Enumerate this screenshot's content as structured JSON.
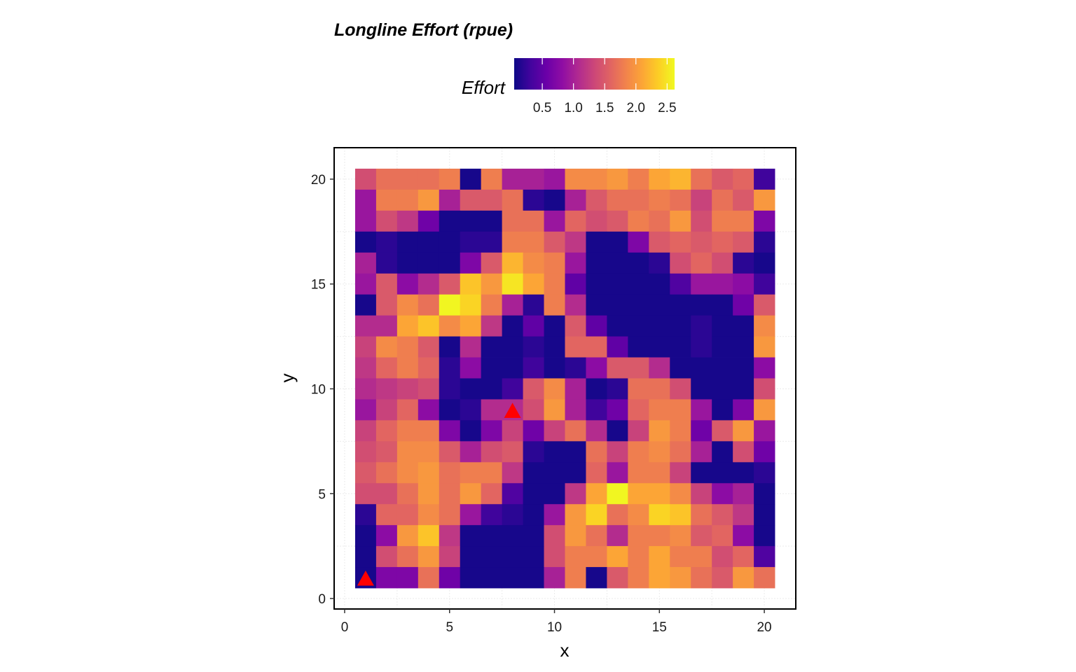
{
  "chart_data": {
    "type": "heatmap",
    "title": "Longline Effort (rpue)",
    "xlabel": "x",
    "ylabel": "y",
    "xlim": [
      -0.5,
      21.5
    ],
    "ylim": [
      -0.5,
      21.5
    ],
    "x_ticks": [
      0,
      5,
      10,
      15,
      20
    ],
    "y_ticks": [
      0,
      5,
      10,
      15,
      20
    ],
    "x_tick_labels": [
      "0",
      "5",
      "10",
      "15",
      "20"
    ],
    "y_tick_labels": [
      "0",
      "5",
      "10",
      "15",
      "20"
    ],
    "x": [
      1,
      2,
      3,
      4,
      5,
      6,
      7,
      8,
      9,
      10,
      11,
      12,
      13,
      14,
      15,
      16,
      17,
      18,
      19,
      20
    ],
    "y": [
      1,
      2,
      3,
      4,
      5,
      6,
      7,
      8,
      9,
      10,
      11,
      12,
      13,
      14,
      15,
      16,
      17,
      18,
      19,
      20
    ],
    "z_rows_top_to_bottom": [
      [
        1.4,
        1.7,
        1.7,
        1.7,
        1.8,
        0.1,
        1.8,
        1.0,
        1.0,
        0.9,
        1.9,
        1.9,
        2.0,
        1.8,
        2.1,
        2.2,
        1.7,
        1.5,
        1.6,
        0.3
      ],
      [
        0.9,
        1.8,
        1.8,
        2.0,
        1.0,
        1.5,
        1.5,
        1.7,
        0.2,
        0.1,
        1.0,
        1.5,
        1.7,
        1.7,
        1.8,
        1.7,
        1.3,
        1.7,
        1.5,
        2.0
      ],
      [
        0.9,
        1.4,
        1.2,
        0.6,
        0.1,
        0.1,
        0.1,
        1.7,
        1.7,
        0.9,
        1.6,
        1.4,
        1.5,
        1.8,
        1.7,
        2.0,
        1.4,
        1.8,
        1.8,
        0.7
      ],
      [
        0.1,
        0.2,
        0.1,
        0.1,
        0.1,
        0.2,
        0.2,
        1.8,
        1.8,
        1.5,
        1.2,
        0.1,
        0.1,
        0.7,
        1.5,
        1.6,
        1.5,
        1.6,
        1.5,
        0.2
      ],
      [
        1.0,
        0.2,
        0.1,
        0.1,
        0.1,
        0.7,
        1.5,
        2.2,
        1.9,
        1.8,
        0.9,
        0.1,
        0.1,
        0.1,
        0.2,
        1.4,
        1.6,
        1.4,
        0.2,
        0.1
      ],
      [
        0.9,
        1.5,
        0.8,
        1.1,
        1.5,
        2.3,
        2.0,
        2.5,
        2.1,
        1.8,
        0.5,
        0.1,
        0.1,
        0.1,
        0.1,
        0.4,
        0.9,
        0.9,
        0.8,
        0.3
      ],
      [
        0.1,
        1.5,
        1.9,
        1.7,
        2.6,
        2.4,
        1.8,
        1.0,
        0.2,
        1.8,
        1.1,
        0.1,
        0.1,
        0.1,
        0.1,
        0.1,
        0.1,
        0.1,
        0.6,
        1.5
      ],
      [
        1.1,
        1.1,
        2.1,
        2.3,
        1.9,
        2.1,
        1.2,
        0.1,
        0.5,
        0.1,
        1.5,
        0.5,
        0.1,
        0.1,
        0.1,
        0.1,
        0.2,
        0.1,
        0.1,
        1.9
      ],
      [
        1.3,
        1.9,
        1.8,
        1.5,
        0.1,
        1.1,
        0.1,
        0.1,
        0.2,
        0.1,
        1.6,
        1.6,
        0.5,
        0.1,
        0.1,
        0.1,
        0.2,
        0.1,
        0.1,
        2.0
      ],
      [
        1.2,
        1.6,
        1.8,
        1.6,
        0.2,
        0.8,
        0.1,
        0.1,
        0.3,
        0.1,
        0.2,
        0.8,
        1.5,
        1.5,
        1.1,
        0.1,
        0.1,
        0.1,
        0.1,
        0.8
      ],
      [
        1.1,
        1.2,
        1.3,
        1.4,
        0.2,
        0.1,
        0.1,
        0.3,
        1.5,
        1.9,
        1.0,
        0.1,
        0.2,
        1.7,
        1.7,
        1.4,
        0.1,
        0.1,
        0.1,
        1.4
      ],
      [
        0.9,
        1.3,
        1.6,
        0.8,
        0.1,
        0.2,
        1.1,
        1.1,
        1.4,
        2.0,
        1.0,
        0.3,
        0.6,
        1.6,
        1.8,
        1.8,
        0.9,
        0.1,
        0.7,
        2.0
      ],
      [
        1.3,
        1.6,
        1.8,
        1.8,
        0.7,
        0.1,
        0.7,
        1.3,
        0.6,
        1.3,
        1.7,
        1.1,
        0.1,
        1.3,
        2.0,
        1.8,
        0.6,
        1.5,
        2.0,
        0.9
      ],
      [
        1.4,
        1.5,
        1.9,
        1.9,
        1.5,
        1.0,
        1.4,
        1.5,
        0.2,
        0.1,
        0.1,
        1.7,
        1.3,
        1.8,
        1.9,
        1.7,
        1.0,
        0.1,
        1.4,
        0.6
      ],
      [
        1.5,
        1.7,
        1.9,
        2.0,
        1.7,
        1.8,
        1.8,
        1.2,
        0.1,
        0.1,
        0.1,
        1.6,
        0.9,
        1.8,
        1.8,
        1.3,
        0.1,
        0.1,
        0.1,
        0.2
      ],
      [
        1.4,
        1.4,
        1.7,
        2.0,
        1.7,
        2.0,
        1.6,
        0.4,
        0.1,
        0.1,
        1.2,
        2.1,
        2.6,
        2.1,
        2.1,
        1.9,
        1.3,
        0.8,
        1.0,
        0.1
      ],
      [
        0.2,
        1.6,
        1.6,
        1.9,
        1.7,
        0.9,
        0.3,
        0.2,
        0.1,
        0.9,
        2.0,
        2.4,
        1.7,
        1.9,
        2.4,
        2.3,
        1.7,
        1.5,
        1.2,
        0.1
      ],
      [
        0.1,
        0.8,
        2.0,
        2.3,
        1.2,
        0.1,
        0.1,
        0.1,
        0.1,
        1.4,
        2.0,
        1.7,
        1.1,
        1.8,
        1.8,
        1.9,
        1.5,
        1.6,
        0.8,
        0.1
      ],
      [
        0.1,
        1.4,
        1.7,
        2.0,
        1.3,
        0.1,
        0.1,
        0.1,
        0.1,
        1.4,
        1.8,
        1.8,
        2.1,
        1.8,
        2.1,
        1.8,
        1.8,
        1.4,
        1.6,
        0.4
      ],
      [
        0.1,
        0.7,
        0.7,
        1.7,
        0.6,
        0.1,
        0.1,
        0.1,
        0.1,
        1.0,
        1.8,
        0.1,
        1.5,
        1.8,
        2.1,
        2.0,
        1.7,
        1.5,
        2.0,
        1.7
      ]
    ],
    "colorbar": {
      "title": "Effort",
      "min": 0.05,
      "max": 2.62,
      "ticks": [
        0.5,
        1.0,
        1.5,
        2.0,
        2.5
      ],
      "tick_labels": [
        "0.5",
        "1.0",
        "1.5",
        "2.0",
        "2.5"
      ],
      "palette": "plasma",
      "position": "top"
    },
    "markers": {
      "shape": "triangle",
      "color": "#ff0000",
      "points": [
        {
          "x": 1,
          "y": 1
        },
        {
          "x": 8,
          "y": 9
        }
      ]
    },
    "grid": true
  },
  "colors": {
    "palette_stops": [
      "#0d0887",
      "#41049d",
      "#6a00a8",
      "#8f0da4",
      "#b12a90",
      "#cc4778",
      "#e16462",
      "#f2844b",
      "#fca636",
      "#fcce25",
      "#f0f921"
    ],
    "marker": "#ff0000",
    "panel_border": "#000000",
    "grid": "#ebebeb"
  }
}
